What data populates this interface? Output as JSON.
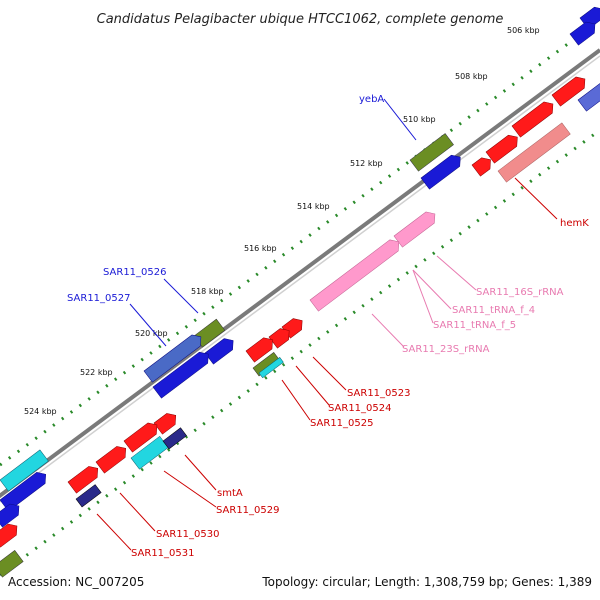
{
  "title": "Candidatus Pelagibacter ubique HTCC1062, complete genome",
  "footer": {
    "accession": "Accession: NC_007205",
    "topology": "Topology: circular; Length: 1,308,759 bp; Genes: 1,389"
  },
  "ticks": [
    "506 kbp",
    "508 kbp",
    "510 kbp",
    "512 kbp",
    "514 kbp",
    "516 kbp",
    "518 kbp",
    "520 kbp",
    "522 kbp",
    "524 kbp"
  ],
  "labels": {
    "yebA": "yebA",
    "hemK": "hemK",
    "sar0526": "SAR11_0526",
    "sar0527": "SAR11_0527",
    "rrna16s": "SAR11_16S_rRNA",
    "trnaf4": "SAR11_tRNA_f_4",
    "trnaf5": "SAR11_tRNA_f_5",
    "rrna23s": "SAR11_23S_rRNA",
    "sar0523": "SAR11_0523",
    "sar0524": "SAR11_0524",
    "sar0525": "SAR11_0525",
    "smtA": "smtA",
    "sar0529": "SAR11_0529",
    "sar0530": "SAR11_0530",
    "sar0531": "SAR11_0531"
  },
  "colors": {
    "backbone": "#808080",
    "outer_dots": "#2a8a2a",
    "inner_dots": "#2a8a2a",
    "cds_red": "#ff1a1a",
    "cds_blue": "#1a1ad6",
    "cds_green": "#6b8e23",
    "cds_cyan": "#22d6e0",
    "rrna_pink": "#ff99cc",
    "label_blue": "#1a1ad6",
    "label_red": "#cc0000",
    "label_pink": "#e87ab0"
  }
}
